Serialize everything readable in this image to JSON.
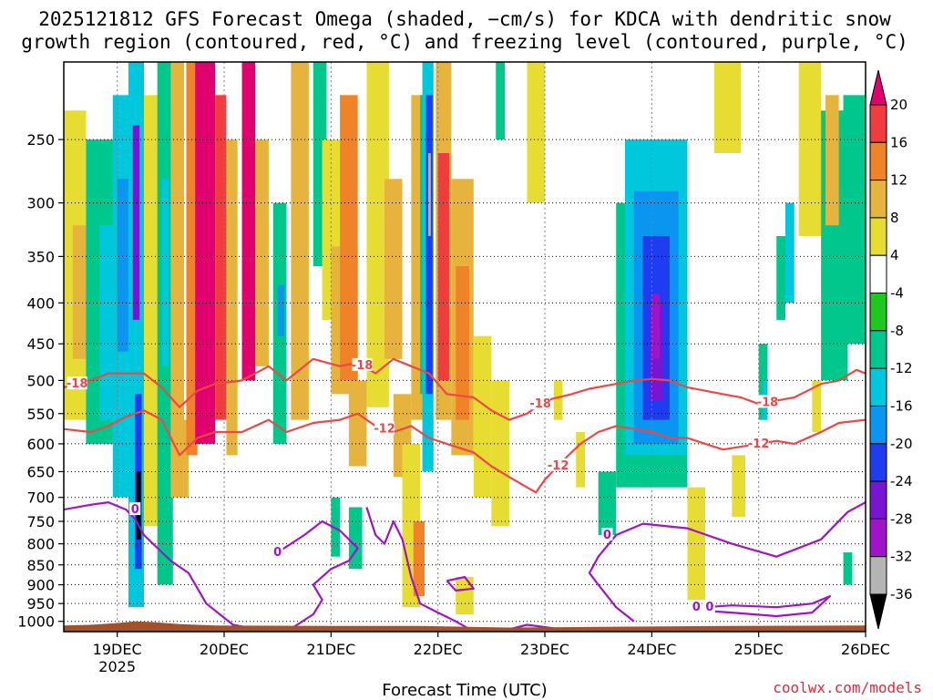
{
  "chart_data": {
    "type": "heatmap",
    "title_line1": "2025121812 GFS Forecast Omega (shaded, −cm/s) for KDCA with dendritic snow",
    "title_line2": "growth region (contoured, red, °C) and freezing level (contoured, purple, °C)",
    "xlabel": "Forecast Time (UTC)",
    "credit": "coolwx.com/models",
    "x_range_hours": [
      0,
      180
    ],
    "x_ticks": [
      {
        "label": "19DEC",
        "hour": 12,
        "sublabel": "2025"
      },
      {
        "label": "20DEC",
        "hour": 36
      },
      {
        "label": "21DEC",
        "hour": 60
      },
      {
        "label": "22DEC",
        "hour": 84
      },
      {
        "label": "23DEC",
        "hour": 108
      },
      {
        "label": "24DEC",
        "hour": 132
      },
      {
        "label": "25DEC",
        "hour": 156
      },
      {
        "label": "26DEC",
        "hour": 180
      }
    ],
    "y_range_hpa": [
      1030,
      200
    ],
    "y_ticks": [
      250,
      300,
      350,
      400,
      450,
      500,
      550,
      600,
      650,
      700,
      750,
      800,
      850,
      900,
      950,
      1000
    ],
    "colorbar": {
      "levels": [
        20,
        16,
        12,
        8,
        4,
        -4,
        -8,
        -12,
        -16,
        -20,
        -24,
        -28,
        -32,
        -36
      ],
      "colors": [
        "#e0006e",
        "#f03c3c",
        "#f08228",
        "#e6b43c",
        "#e6dc32",
        "#ffffff",
        "#1ec81e",
        "#00c88c",
        "#00c8dc",
        "#0a96f0",
        "#1e3cf0",
        "#7814d2",
        "#a014c8",
        "#b4b4b4",
        "#000000"
      ]
    },
    "omega_cells": [
      {
        "t": 0.0,
        "t2": 5.0,
        "p1": 230,
        "p2": 560,
        "v": 6
      },
      {
        "t": 2.0,
        "t2": 6.0,
        "p1": 320,
        "p2": 470,
        "v": 10
      },
      {
        "t": 5.0,
        "t2": 12.0,
        "p1": 250,
        "p2": 600,
        "v": -10
      },
      {
        "t": 8.0,
        "t2": 12.0,
        "p1": 320,
        "p2": 560,
        "v": -14
      },
      {
        "t": 11.0,
        "t2": 15.0,
        "p1": 220,
        "p2": 700,
        "v": -12
      },
      {
        "t": 12.0,
        "t2": 14.5,
        "p1": 280,
        "p2": 460,
        "v": -18
      },
      {
        "t": 14.5,
        "t2": 18.0,
        "p1": 200,
        "p2": 960,
        "v": -14
      },
      {
        "t": 15.5,
        "t2": 17.0,
        "p1": 240,
        "p2": 420,
        "v": -24
      },
      {
        "t": 16.0,
        "t2": 17.5,
        "p1": 520,
        "p2": 860,
        "v": -20
      },
      {
        "t": 16.3,
        "t2": 17.3,
        "p1": 650,
        "p2": 790,
        "v": -36
      },
      {
        "t": 18.0,
        "t2": 22.0,
        "p1": 220,
        "p2": 760,
        "v": 6
      },
      {
        "t": 21.0,
        "t2": 24.5,
        "p1": 200,
        "p2": 900,
        "v": -8
      },
      {
        "t": 22.0,
        "t2": 23.5,
        "p1": 280,
        "p2": 480,
        "v": -14
      },
      {
        "t": 24.0,
        "t2": 27.0,
        "p1": 200,
        "p2": 700,
        "v": 8
      },
      {
        "t": 26.0,
        "t2": 28.0,
        "p1": 560,
        "p2": 700,
        "v": 10
      },
      {
        "t": 27.5,
        "t2": 30.0,
        "p1": 200,
        "p2": 620,
        "v": 12
      },
      {
        "t": 29.5,
        "t2": 34.0,
        "p1": 200,
        "p2": 600,
        "v": 20
      },
      {
        "t": 34.0,
        "t2": 36.5,
        "p1": 220,
        "p2": 560,
        "v": 16
      },
      {
        "t": 36.5,
        "t2": 39.0,
        "p1": 250,
        "p2": 620,
        "v": 10
      },
      {
        "t": 40.0,
        "t2": 43.0,
        "p1": 200,
        "p2": 500,
        "v": 20
      },
      {
        "t": 43.0,
        "t2": 46.0,
        "p1": 250,
        "p2": 480,
        "v": 10
      },
      {
        "t": 47.0,
        "t2": 50.0,
        "p1": 300,
        "p2": 600,
        "v": -8
      },
      {
        "t": 48.0,
        "t2": 49.5,
        "p1": 380,
        "p2": 440,
        "v": -16
      },
      {
        "t": 51.0,
        "t2": 55.0,
        "p1": 200,
        "p2": 560,
        "v": 8
      },
      {
        "t": 56.0,
        "t2": 59.0,
        "p1": 200,
        "p2": 360,
        "v": -8
      },
      {
        "t": 58.0,
        "t2": 62.0,
        "p1": 250,
        "p2": 420,
        "v": 4
      },
      {
        "t": 60.0,
        "t2": 66.0,
        "p1": 340,
        "p2": 520,
        "v": 8
      },
      {
        "t": 62.0,
        "t2": 66.0,
        "p1": 220,
        "p2": 500,
        "v": 12
      },
      {
        "t": 64.0,
        "t2": 68.0,
        "p1": 500,
        "p2": 640,
        "v": 8
      },
      {
        "t": 60.0,
        "t2": 62.0,
        "p1": 700,
        "p2": 830,
        "v": -8
      },
      {
        "t": 64.0,
        "t2": 67.0,
        "p1": 720,
        "p2": 860,
        "v": -8
      },
      {
        "t": 68.0,
        "t2": 73.0,
        "p1": 200,
        "p2": 540,
        "v": 6
      },
      {
        "t": 72.0,
        "t2": 76.0,
        "p1": 280,
        "p2": 470,
        "v": 10
      },
      {
        "t": 74.0,
        "t2": 78.0,
        "p1": 520,
        "p2": 660,
        "v": 8
      },
      {
        "t": 76.0,
        "t2": 80.0,
        "p1": 600,
        "p2": 960,
        "v": 6
      },
      {
        "t": 78.0,
        "t2": 80.5,
        "p1": 220,
        "p2": 560,
        "v": 10
      },
      {
        "t": 78.5,
        "t2": 81.0,
        "p1": 750,
        "p2": 930,
        "v": 12
      },
      {
        "t": 80.0,
        "t2": 81.5,
        "p1": 220,
        "p2": 520,
        "v": -8
      },
      {
        "t": 80.5,
        "t2": 83.0,
        "p1": 200,
        "p2": 650,
        "v": -14
      },
      {
        "t": 81.3,
        "t2": 82.8,
        "p1": 220,
        "p2": 520,
        "v": -22
      },
      {
        "t": 81.8,
        "t2": 82.4,
        "p1": 260,
        "p2": 330,
        "v": -34
      },
      {
        "t": 81.3,
        "t2": 82.8,
        "p1": 520,
        "p2": 640,
        "v": -14
      },
      {
        "t": 83.5,
        "t2": 87.0,
        "p1": 200,
        "p2": 560,
        "v": 8
      },
      {
        "t": 84.0,
        "t2": 86.5,
        "p1": 260,
        "p2": 500,
        "v": 16
      },
      {
        "t": 87.0,
        "t2": 92.0,
        "p1": 280,
        "p2": 620,
        "v": 8
      },
      {
        "t": 88.0,
        "t2": 91.0,
        "p1": 360,
        "p2": 560,
        "v": 12
      },
      {
        "t": 92.0,
        "t2": 96.0,
        "p1": 440,
        "p2": 700,
        "v": 6
      },
      {
        "t": 88.0,
        "t2": 92.0,
        "p1": 880,
        "p2": 980,
        "v": 6
      },
      {
        "t": 96.0,
        "t2": 100.0,
        "p1": 500,
        "p2": 760,
        "v": 6
      },
      {
        "t": 97.0,
        "t2": 99.0,
        "p1": 200,
        "p2": 250,
        "v": -8
      },
      {
        "t": 104.0,
        "t2": 108.0,
        "p1": 200,
        "p2": 300,
        "v": 4
      },
      {
        "t": 110.0,
        "t2": 112.0,
        "p1": 500,
        "p2": 560,
        "v": 6
      },
      {
        "t": 115.0,
        "t2": 117.0,
        "p1": 580,
        "p2": 680,
        "v": 6
      },
      {
        "t": 120.0,
        "t2": 124.0,
        "p1": 650,
        "p2": 780,
        "v": -8
      },
      {
        "t": 124.0,
        "t2": 140.0,
        "p1": 300,
        "p2": 680,
        "v": -8
      },
      {
        "t": 126.0,
        "t2": 140.0,
        "p1": 250,
        "p2": 620,
        "v": -12
      },
      {
        "t": 128.0,
        "t2": 138.0,
        "p1": 290,
        "p2": 600,
        "v": -16
      },
      {
        "t": 130.0,
        "t2": 136.0,
        "p1": 330,
        "p2": 560,
        "v": -20
      },
      {
        "t": 131.5,
        "t2": 134.5,
        "p1": 400,
        "p2": 530,
        "v": -24
      },
      {
        "t": 132.0,
        "t2": 133.8,
        "p1": 390,
        "p2": 470,
        "v": -28
      },
      {
        "t": 140.0,
        "t2": 144.0,
        "p1": 680,
        "p2": 940,
        "v": 6
      },
      {
        "t": 146.0,
        "t2": 152.0,
        "p1": 200,
        "p2": 260,
        "v": 6
      },
      {
        "t": 150.0,
        "t2": 153.0,
        "p1": 620,
        "p2": 740,
        "v": 6
      },
      {
        "t": 156.0,
        "t2": 158.0,
        "p1": 450,
        "p2": 560,
        "v": -8
      },
      {
        "t": 157.0,
        "t2": 158.0,
        "p1": 500,
        "p2": 560,
        "v": -12
      },
      {
        "t": 160.0,
        "t2": 162.0,
        "p1": 330,
        "p2": 420,
        "v": -8
      },
      {
        "t": 162.0,
        "t2": 164.0,
        "p1": 300,
        "p2": 400,
        "v": -12
      },
      {
        "t": 165.0,
        "t2": 170.0,
        "p1": 200,
        "p2": 330,
        "v": 6
      },
      {
        "t": 168.0,
        "t2": 170.0,
        "p1": 500,
        "p2": 580,
        "v": 6
      },
      {
        "t": 170.0,
        "t2": 176.0,
        "p1": 230,
        "p2": 500,
        "v": -8
      },
      {
        "t": 171.0,
        "t2": 174.0,
        "p1": 220,
        "p2": 320,
        "v": 10
      },
      {
        "t": 172.0,
        "t2": 174.0,
        "p1": 380,
        "p2": 480,
        "v": -8
      },
      {
        "t": 175.0,
        "t2": 180.0,
        "p1": 220,
        "p2": 450,
        "v": -8
      },
      {
        "t": 175.0,
        "t2": 177.0,
        "p1": 820,
        "p2": 900,
        "v": -8
      }
    ],
    "isotherm_minus18": {
      "label": "-18",
      "color": "#f04646",
      "points": [
        [
          0,
          510
        ],
        [
          6,
          500
        ],
        [
          10,
          490
        ],
        [
          14,
          490
        ],
        [
          18,
          490
        ],
        [
          22,
          510
        ],
        [
          26,
          540
        ],
        [
          30,
          515
        ],
        [
          34,
          505
        ],
        [
          40,
          500
        ],
        [
          46,
          480
        ],
        [
          50,
          500
        ],
        [
          56,
          470
        ],
        [
          62,
          480
        ],
        [
          66,
          475
        ],
        [
          70,
          490
        ],
        [
          74,
          470
        ],
        [
          78,
          480
        ],
        [
          82,
          490
        ],
        [
          86,
          520
        ],
        [
          92,
          525
        ],
        [
          96,
          545
        ],
        [
          100,
          560
        ],
        [
          104,
          550
        ],
        [
          108,
          530
        ],
        [
          114,
          520
        ],
        [
          118,
          512
        ],
        [
          124,
          505
        ],
        [
          128,
          500
        ],
        [
          132,
          498
        ],
        [
          136,
          500
        ],
        [
          140,
          510
        ],
        [
          144,
          515
        ],
        [
          148,
          520
        ],
        [
          152,
          525
        ],
        [
          156,
          535
        ],
        [
          160,
          530
        ],
        [
          164,
          525
        ],
        [
          170,
          505
        ],
        [
          174,
          500
        ],
        [
          178,
          485
        ],
        [
          180,
          490
        ]
      ],
      "labels": [
        [
          3,
          "-18"
        ],
        [
          67,
          "-18"
        ],
        [
          107,
          "-18"
        ],
        [
          158,
          "-18"
        ]
      ]
    },
    "isotherm_minus12": {
      "label": "-12",
      "color": "#f04646",
      "points": [
        [
          0,
          575
        ],
        [
          6,
          580
        ],
        [
          10,
          570
        ],
        [
          14,
          555
        ],
        [
          18,
          545
        ],
        [
          22,
          560
        ],
        [
          26,
          620
        ],
        [
          30,
          590
        ],
        [
          34,
          580
        ],
        [
          40,
          580
        ],
        [
          46,
          560
        ],
        [
          50,
          580
        ],
        [
          56,
          565
        ],
        [
          62,
          560
        ],
        [
          66,
          550
        ],
        [
          70,
          570
        ],
        [
          74,
          580
        ],
        [
          78,
          570
        ],
        [
          82,
          590
        ],
        [
          86,
          600
        ],
        [
          92,
          615
        ],
        [
          96,
          640
        ],
        [
          100,
          660
        ],
        [
          104,
          680
        ],
        [
          106,
          690
        ],
        [
          108,
          665
        ],
        [
          112,
          630
        ],
        [
          116,
          600
        ],
        [
          120,
          580
        ],
        [
          124,
          570
        ],
        [
          128,
          575
        ],
        [
          132,
          580
        ],
        [
          136,
          590
        ],
        [
          140,
          590
        ],
        [
          144,
          600
        ],
        [
          148,
          610
        ],
        [
          152,
          605
        ],
        [
          156,
          600
        ],
        [
          160,
          595
        ],
        [
          164,
          600
        ],
        [
          170,
          580
        ],
        [
          174,
          565
        ],
        [
          180,
          560
        ]
      ],
      "labels": [
        [
          72,
          "-12"
        ],
        [
          111,
          "-12"
        ],
        [
          156,
          "-12"
        ]
      ]
    },
    "freezing_level": {
      "label": "0",
      "color": "#a014c8",
      "segments": [
        [
          [
            0,
            725
          ],
          [
            6,
            715
          ],
          [
            10,
            710
          ],
          [
            14,
            725
          ],
          [
            16,
            745
          ],
          [
            18,
            780
          ],
          [
            24,
            840
          ],
          [
            28,
            870
          ],
          [
            32,
            950
          ],
          [
            38,
            1010
          ],
          [
            46,
            1030
          ]
        ],
        [
          [
            48,
            820
          ],
          [
            54,
            780
          ],
          [
            58,
            750
          ],
          [
            62,
            770
          ],
          [
            66,
            810
          ],
          [
            64,
            840
          ],
          [
            60,
            860
          ],
          [
            56,
            900
          ],
          [
            58,
            940
          ],
          [
            56,
            980
          ],
          [
            50,
            1030
          ]
        ],
        [
          [
            68,
            720
          ],
          [
            70,
            780
          ],
          [
            72,
            800
          ],
          [
            74,
            750
          ],
          [
            76,
            790
          ],
          [
            78,
            880
          ],
          [
            80,
            950
          ],
          [
            84,
            975
          ],
          [
            88,
            1000
          ],
          [
            92,
            1030
          ]
        ],
        [
          [
            98,
            1030
          ],
          [
            104,
            1010
          ],
          [
            110,
            1020
          ],
          [
            116,
            1030
          ]
        ],
        [
          [
            128,
            1000
          ],
          [
            124,
            960
          ],
          [
            120,
            900
          ],
          [
            118,
            870
          ],
          [
            120,
            830
          ],
          [
            124,
            780
          ],
          [
            130,
            755
          ],
          [
            140,
            765
          ],
          [
            150,
            800
          ],
          [
            160,
            830
          ],
          [
            170,
            790
          ],
          [
            176,
            730
          ],
          [
            180,
            710
          ]
        ],
        [
          [
            144,
            960
          ],
          [
            150,
            955
          ],
          [
            160,
            960
          ],
          [
            168,
            950
          ],
          [
            172,
            930
          ],
          [
            168,
            975
          ],
          [
            160,
            985
          ],
          [
            150,
            975
          ],
          [
            144,
            970
          ]
        ],
        [
          [
            86,
            890
          ],
          [
            90,
            880
          ],
          [
            92,
            910
          ],
          [
            88,
            915
          ],
          [
            86,
            890
          ]
        ]
      ],
      "labels": [
        [
          16,
          "0"
        ],
        [
          48,
          "0"
        ],
        [
          122,
          "0"
        ],
        [
          142,
          "0"
        ],
        [
          145,
          "0"
        ]
      ]
    },
    "terrain": {
      "color": "#a0522d",
      "note": "surface below ~1010 hPa"
    }
  }
}
